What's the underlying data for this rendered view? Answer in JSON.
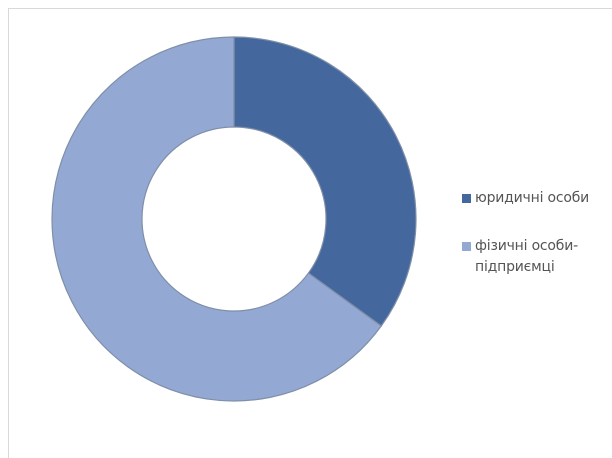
{
  "chart_data": {
    "type": "pie",
    "variant": "donut",
    "categories": [
      "юридичні особи",
      "фізичні особи-\nпідприємці"
    ],
    "values": [
      35,
      65
    ],
    "colors": [
      "#44679e",
      "#93a8d2"
    ],
    "title": "",
    "legend": {
      "placement": "right",
      "entries": [
        "юридичні особи",
        "фізичні особи-\nпідприємці"
      ]
    },
    "grid": false
  }
}
